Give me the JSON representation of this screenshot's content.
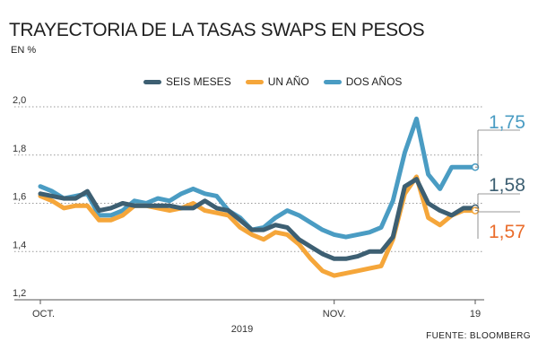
{
  "title": "TRAYECTORIA DE LA TASAS SWAPS EN PESOS",
  "subtitle": "EN %",
  "source": "FUENTE: BLOOMBERG",
  "colors": {
    "seis_meses": "#3d5f72",
    "un_anio": "#f5a63a",
    "dos_anios": "#4a9cc3",
    "un_anio_label": "#ea6d2c",
    "grid": "#9a9a9a"
  },
  "chart_data": {
    "type": "line",
    "title": "TRAYECTORIA DE LA TASAS SWAPS EN PESOS",
    "ylabel": "EN %",
    "xlabel": "2019",
    "ylim": [
      1.2,
      2.0
    ],
    "yticks": [
      "2,0",
      "1,8",
      "1,6",
      "1,4",
      "1,2"
    ],
    "ytick_values": [
      2.0,
      1.8,
      1.6,
      1.4,
      1.2
    ],
    "xtick_labels": [
      "OCT.",
      "NOV.",
      "19"
    ],
    "xtick_index": [
      0,
      25,
      37
    ],
    "year_label": "2019",
    "n_points": 38,
    "series": [
      {
        "key": "seis_meses",
        "name": "SEIS MESES",
        "values": [
          1.64,
          1.63,
          1.62,
          1.62,
          1.65,
          1.57,
          1.58,
          1.6,
          1.59,
          1.59,
          1.59,
          1.59,
          1.58,
          1.58,
          1.61,
          1.58,
          1.57,
          1.53,
          1.49,
          1.49,
          1.51,
          1.5,
          1.45,
          1.42,
          1.39,
          1.37,
          1.37,
          1.38,
          1.4,
          1.4,
          1.46,
          1.67,
          1.7,
          1.6,
          1.57,
          1.55,
          1.58,
          1.58
        ],
        "end_label": "1,58"
      },
      {
        "key": "un_anio",
        "name": "UN AÑO",
        "values": [
          1.63,
          1.61,
          1.58,
          1.59,
          1.59,
          1.53,
          1.53,
          1.55,
          1.59,
          1.59,
          1.58,
          1.57,
          1.58,
          1.6,
          1.57,
          1.56,
          1.55,
          1.5,
          1.47,
          1.45,
          1.48,
          1.47,
          1.43,
          1.37,
          1.32,
          1.3,
          1.31,
          1.32,
          1.33,
          1.34,
          1.45,
          1.64,
          1.71,
          1.54,
          1.51,
          1.55,
          1.57,
          1.57
        ],
        "end_label": "1,57"
      },
      {
        "key": "dos_anios",
        "name": "DOS AÑOS",
        "values": [
          1.67,
          1.65,
          1.62,
          1.63,
          1.64,
          1.55,
          1.55,
          1.57,
          1.61,
          1.6,
          1.62,
          1.61,
          1.64,
          1.66,
          1.64,
          1.63,
          1.57,
          1.54,
          1.49,
          1.5,
          1.54,
          1.57,
          1.55,
          1.52,
          1.49,
          1.47,
          1.46,
          1.47,
          1.48,
          1.5,
          1.61,
          1.81,
          1.95,
          1.72,
          1.66,
          1.75,
          1.75,
          1.75
        ],
        "end_label": "1,75"
      }
    ]
  }
}
